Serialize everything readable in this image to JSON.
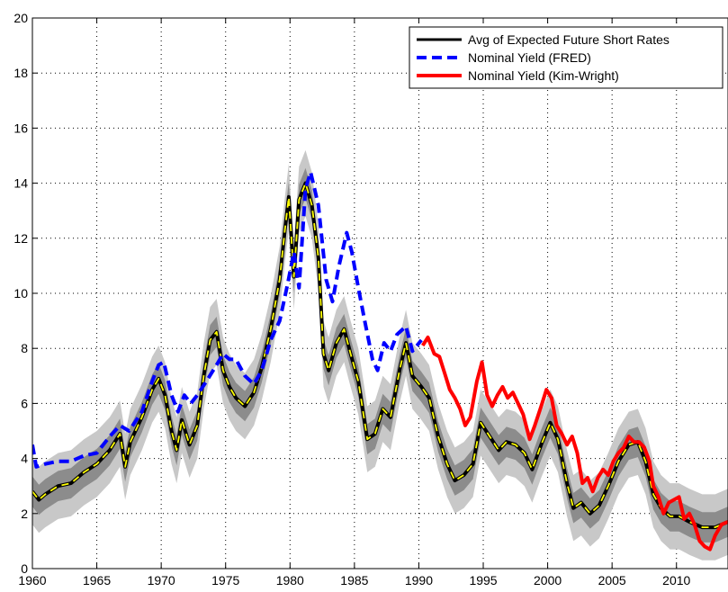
{
  "chart_data": {
    "type": "line",
    "xlim": [
      1960,
      2014
    ],
    "ylim": [
      0,
      20
    ],
    "xticks": [
      1960,
      1965,
      1970,
      1975,
      1980,
      1985,
      1990,
      1995,
      2000,
      2005,
      2010
    ],
    "yticks": [
      0,
      2,
      4,
      6,
      8,
      10,
      12,
      14,
      16,
      18,
      20
    ],
    "grid": true,
    "legend_position": "top-right",
    "series": [
      {
        "name": "Avg of Expected Future Short Rates",
        "color": "#000000",
        "style": "solid-with-yellow-dash",
        "points": [
          [
            1960,
            2.8
          ],
          [
            1960.5,
            2.5
          ],
          [
            1961,
            2.7
          ],
          [
            1962,
            3.0
          ],
          [
            1963,
            3.1
          ],
          [
            1964,
            3.5
          ],
          [
            1965,
            3.8
          ],
          [
            1966,
            4.3
          ],
          [
            1966.8,
            4.9
          ],
          [
            1967.2,
            3.7
          ],
          [
            1967.6,
            4.6
          ],
          [
            1968.5,
            5.5
          ],
          [
            1969.3,
            6.5
          ],
          [
            1969.8,
            6.9
          ],
          [
            1970.3,
            6.3
          ],
          [
            1970.8,
            5.0
          ],
          [
            1971.2,
            4.3
          ],
          [
            1971.6,
            5.4
          ],
          [
            1972.2,
            4.5
          ],
          [
            1972.8,
            5.2
          ],
          [
            1973.3,
            7.0
          ],
          [
            1973.8,
            8.3
          ],
          [
            1974.3,
            8.6
          ],
          [
            1974.8,
            7.2
          ],
          [
            1975.3,
            6.6
          ],
          [
            1975.8,
            6.2
          ],
          [
            1976.5,
            5.9
          ],
          [
            1977.2,
            6.4
          ],
          [
            1977.8,
            7.3
          ],
          [
            1978.5,
            8.7
          ],
          [
            1979.2,
            10.5
          ],
          [
            1979.6,
            12.3
          ],
          [
            1979.9,
            13.5
          ],
          [
            1980.3,
            10.6
          ],
          [
            1980.7,
            13.4
          ],
          [
            1981.2,
            14.0
          ],
          [
            1981.7,
            13.2
          ],
          [
            1982.2,
            11.3
          ],
          [
            1982.6,
            7.8
          ],
          [
            1983.0,
            7.2
          ],
          [
            1983.6,
            8.2
          ],
          [
            1984.2,
            8.7
          ],
          [
            1984.7,
            7.8
          ],
          [
            1985.3,
            6.8
          ],
          [
            1986.0,
            4.7
          ],
          [
            1986.6,
            4.9
          ],
          [
            1987.2,
            5.8
          ],
          [
            1987.8,
            5.5
          ],
          [
            1988.5,
            7.2
          ],
          [
            1989.0,
            8.2
          ],
          [
            1989.5,
            7.0
          ],
          [
            1990.2,
            6.6
          ],
          [
            1990.8,
            6.2
          ],
          [
            1991.5,
            4.8
          ],
          [
            1992.2,
            3.8
          ],
          [
            1992.8,
            3.2
          ],
          [
            1993.5,
            3.4
          ],
          [
            1994.2,
            3.8
          ],
          [
            1994.8,
            5.3
          ],
          [
            1995.5,
            4.8
          ],
          [
            1996.2,
            4.3
          ],
          [
            1996.8,
            4.6
          ],
          [
            1997.5,
            4.5
          ],
          [
            1998.2,
            4.2
          ],
          [
            1998.8,
            3.6
          ],
          [
            1999.5,
            4.5
          ],
          [
            2000.2,
            5.3
          ],
          [
            2000.8,
            4.7
          ],
          [
            2001.5,
            3.1
          ],
          [
            2002.0,
            2.2
          ],
          [
            2002.6,
            2.4
          ],
          [
            2003.3,
            2.0
          ],
          [
            2004.0,
            2.3
          ],
          [
            2004.7,
            3.0
          ],
          [
            2005.5,
            3.9
          ],
          [
            2006.3,
            4.5
          ],
          [
            2007.0,
            4.6
          ],
          [
            2007.6,
            3.9
          ],
          [
            2008.2,
            2.7
          ],
          [
            2008.8,
            2.2
          ],
          [
            2009.5,
            1.9
          ],
          [
            2010.2,
            1.9
          ],
          [
            2011.0,
            1.7
          ],
          [
            2012.0,
            1.5
          ],
          [
            2013.0,
            1.5
          ],
          [
            2014.0,
            1.7
          ]
        ]
      },
      {
        "name": "Nominal Yield (FRED)",
        "color": "#0000ff",
        "style": "dashed",
        "points": [
          [
            1960,
            4.5
          ],
          [
            1960.3,
            3.7
          ],
          [
            1961,
            3.8
          ],
          [
            1962,
            3.9
          ],
          [
            1963,
            3.9
          ],
          [
            1964,
            4.1
          ],
          [
            1965,
            4.2
          ],
          [
            1966,
            4.8
          ],
          [
            1966.8,
            5.2
          ],
          [
            1967.5,
            5.0
          ],
          [
            1968.5,
            5.7
          ],
          [
            1969.3,
            6.8
          ],
          [
            1969.8,
            7.4
          ],
          [
            1970.2,
            7.5
          ],
          [
            1970.8,
            6.3
          ],
          [
            1971.3,
            5.7
          ],
          [
            1971.8,
            6.3
          ],
          [
            1972.3,
            6.0
          ],
          [
            1972.8,
            6.3
          ],
          [
            1973.5,
            6.8
          ],
          [
            1974.3,
            7.4
          ],
          [
            1974.8,
            7.8
          ],
          [
            1975.3,
            7.6
          ],
          [
            1975.8,
            7.6
          ],
          [
            1976.5,
            7.0
          ],
          [
            1977.2,
            6.7
          ],
          [
            1977.8,
            7.2
          ],
          [
            1978.5,
            8.3
          ],
          [
            1979.2,
            9.0
          ],
          [
            1979.8,
            10.3
          ],
          [
            1980.3,
            11.5
          ],
          [
            1980.7,
            10.2
          ],
          [
            1981.2,
            13.8
          ],
          [
            1981.6,
            14.4
          ],
          [
            1982.2,
            13.2
          ],
          [
            1982.8,
            10.5
          ],
          [
            1983.3,
            9.7
          ],
          [
            1983.8,
            11.0
          ],
          [
            1984.4,
            12.2
          ],
          [
            1984.8,
            11.5
          ],
          [
            1985.3,
            10.2
          ],
          [
            1985.8,
            9.0
          ],
          [
            1986.4,
            7.6
          ],
          [
            1986.8,
            7.2
          ],
          [
            1987.3,
            8.2
          ],
          [
            1987.8,
            7.9
          ],
          [
            1988.3,
            8.5
          ],
          [
            1989.0,
            8.8
          ],
          [
            1989.5,
            7.9
          ],
          [
            1990.2,
            8.3
          ]
        ]
      },
      {
        "name": "Nominal Yield (Kim-Wright)",
        "color": "#ff0000",
        "style": "solid",
        "points": [
          [
            1990.3,
            8.1
          ],
          [
            1990.7,
            8.4
          ],
          [
            1991.2,
            7.8
          ],
          [
            1991.6,
            7.7
          ],
          [
            1992.0,
            7.1
          ],
          [
            1992.4,
            6.5
          ],
          [
            1992.8,
            6.2
          ],
          [
            1993.2,
            5.8
          ],
          [
            1993.6,
            5.2
          ],
          [
            1994.0,
            5.5
          ],
          [
            1994.5,
            6.8
          ],
          [
            1994.9,
            7.5
          ],
          [
            1995.3,
            6.3
          ],
          [
            1995.7,
            5.9
          ],
          [
            1996.1,
            6.3
          ],
          [
            1996.5,
            6.6
          ],
          [
            1996.9,
            6.2
          ],
          [
            1997.3,
            6.4
          ],
          [
            1997.7,
            6.0
          ],
          [
            1998.1,
            5.6
          ],
          [
            1998.6,
            4.7
          ],
          [
            1999.0,
            5.2
          ],
          [
            1999.5,
            5.9
          ],
          [
            1999.9,
            6.5
          ],
          [
            2000.3,
            6.2
          ],
          [
            2000.7,
            5.2
          ],
          [
            2001.1,
            4.9
          ],
          [
            2001.5,
            4.5
          ],
          [
            2001.9,
            4.8
          ],
          [
            2002.3,
            4.2
          ],
          [
            2002.7,
            3.1
          ],
          [
            2003.1,
            3.3
          ],
          [
            2003.5,
            2.8
          ],
          [
            2003.9,
            3.3
          ],
          [
            2004.3,
            3.6
          ],
          [
            2004.7,
            3.4
          ],
          [
            2005.1,
            3.9
          ],
          [
            2005.5,
            4.2
          ],
          [
            2005.9,
            4.4
          ],
          [
            2006.3,
            4.8
          ],
          [
            2006.7,
            4.6
          ],
          [
            2007.1,
            4.6
          ],
          [
            2007.5,
            4.4
          ],
          [
            2007.9,
            3.9
          ],
          [
            2008.2,
            3.0
          ],
          [
            2008.6,
            2.6
          ],
          [
            2009.0,
            2.0
          ],
          [
            2009.4,
            2.4
          ],
          [
            2009.8,
            2.5
          ],
          [
            2010.2,
            2.6
          ],
          [
            2010.6,
            1.8
          ],
          [
            2011.0,
            2.0
          ],
          [
            2011.4,
            1.6
          ],
          [
            2011.8,
            1.0
          ],
          [
            2012.2,
            0.8
          ],
          [
            2012.6,
            0.7
          ],
          [
            2013.0,
            1.2
          ],
          [
            2013.5,
            1.6
          ],
          [
            2014.0,
            1.7
          ]
        ]
      }
    ]
  }
}
